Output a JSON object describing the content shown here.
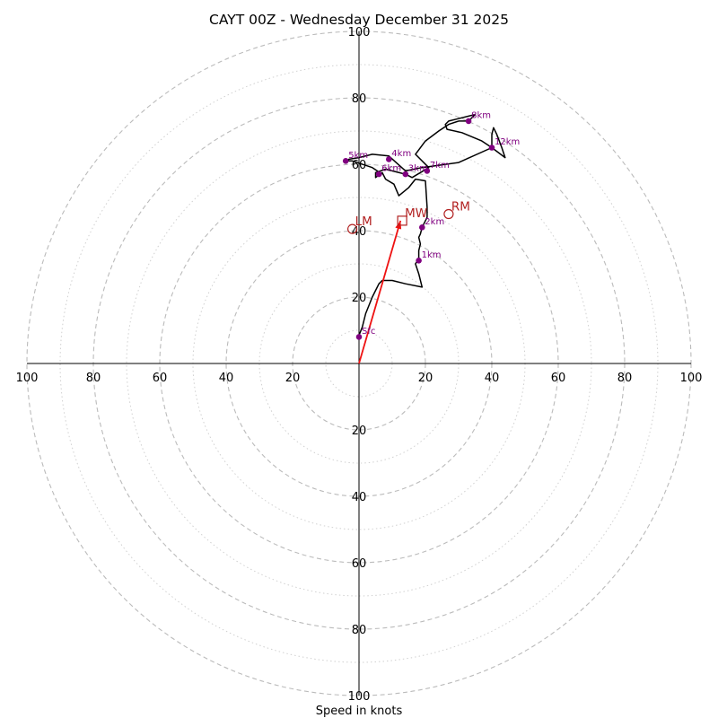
{
  "chart_data": {
    "type": "hodograph",
    "title": "CAYT 00Z - Wednesday December 31 2025",
    "xlabel": "Speed in knots",
    "rings": [
      10,
      20,
      30,
      40,
      50,
      60,
      70,
      80,
      90,
      100
    ],
    "axis_ticks": [
      20,
      40,
      60,
      80,
      100
    ],
    "max_speed": 100,
    "colors": {
      "hodograph": "#000000",
      "height_marker": "#800080",
      "motion": "#b22222",
      "mean_wind_arrow": "#ee1111",
      "ring": "#bbbbbb"
    },
    "hodograph_trace": [
      [
        0,
        8.5
      ],
      [
        1,
        11
      ],
      [
        2,
        15
      ],
      [
        4,
        20
      ],
      [
        6,
        24
      ],
      [
        7,
        25
      ],
      [
        10,
        25
      ],
      [
        14,
        24
      ],
      [
        19,
        23
      ],
      [
        18,
        27
      ],
      [
        17,
        30
      ],
      [
        18,
        31.5
      ],
      [
        18,
        34
      ],
      [
        18.5,
        36
      ],
      [
        18,
        38
      ],
      [
        18.5,
        39
      ],
      [
        19,
        41
      ],
      [
        20.5,
        44
      ],
      [
        20.5,
        47
      ],
      [
        20,
        55
      ],
      [
        17,
        55.5
      ],
      [
        15,
        53
      ],
      [
        12,
        50.5
      ],
      [
        10.5,
        54
      ],
      [
        8,
        55.5
      ],
      [
        7,
        57.5
      ],
      [
        5,
        56
      ],
      [
        5,
        57.5
      ],
      [
        8,
        58.5
      ],
      [
        14,
        57
      ],
      [
        16,
        56
      ],
      [
        21,
        59
      ],
      [
        17,
        63
      ],
      [
        20,
        67
      ],
      [
        24,
        70
      ],
      [
        27,
        72
      ],
      [
        30,
        73
      ],
      [
        33,
        73
      ],
      [
        35,
        75
      ],
      [
        27,
        73
      ],
      [
        26,
        72
      ],
      [
        26.5,
        70.5
      ],
      [
        31,
        69.5
      ],
      [
        37,
        67
      ],
      [
        40,
        65
      ],
      [
        40,
        69
      ],
      [
        40.5,
        71
      ],
      [
        41.5,
        69
      ],
      [
        43,
        65
      ],
      [
        44,
        62
      ],
      [
        40,
        65
      ],
      [
        30,
        60.5
      ],
      [
        19,
        59
      ],
      [
        14,
        58
      ],
      [
        9,
        62.5
      ],
      [
        4,
        63
      ],
      [
        0,
        62
      ],
      [
        -3,
        61.5
      ],
      [
        -4,
        61
      ],
      [
        -2,
        61
      ],
      [
        4,
        59
      ],
      [
        7,
        57
      ]
    ],
    "height_markers": [
      {
        "label": "Sfc",
        "u": 0,
        "v": 8
      },
      {
        "label": "1km",
        "u": 18,
        "v": 31
      },
      {
        "label": "2km",
        "u": 19,
        "v": 41
      },
      {
        "label": "3km",
        "u": 14,
        "v": 57
      },
      {
        "label": "4km",
        "u": 9,
        "v": 61.5
      },
      {
        "label": "5km",
        "u": -4,
        "v": 61
      },
      {
        "label": "6km",
        "u": 6,
        "v": 57
      },
      {
        "label": "7km",
        "u": 20.5,
        "v": 58
      },
      {
        "label": "8km",
        "u": 33,
        "v": 73
      },
      {
        "label": "12km",
        "u": 40,
        "v": 65
      }
    ],
    "storm_motion": [
      {
        "label": "RM",
        "u": 27,
        "v": 45,
        "marker": "circle"
      },
      {
        "label": "LM",
        "u": -2,
        "v": 40.5,
        "marker": "circle"
      },
      {
        "label": "MW",
        "u": 13,
        "v": 43,
        "marker": "square"
      }
    ],
    "mean_wind_arrow": {
      "from": [
        0,
        0
      ],
      "to": [
        12.5,
        43
      ]
    }
  }
}
